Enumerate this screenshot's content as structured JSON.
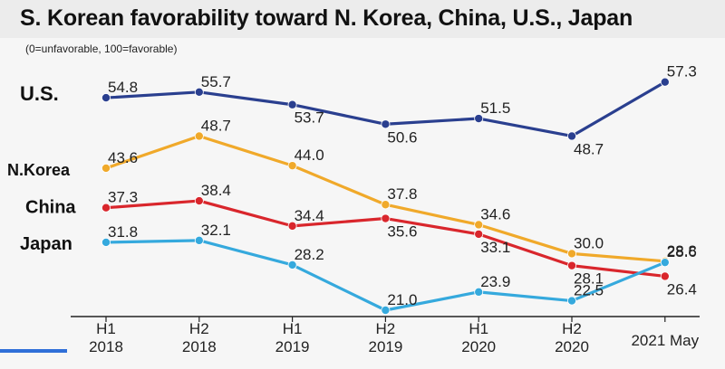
{
  "chart_data": {
    "type": "line",
    "title": "S. Korean favorability toward N. Korea, China, U.S., Japan",
    "subtitle": "(0=unfavorable, 100=favorable)",
    "categories": [
      [
        "H1",
        "2018"
      ],
      [
        "H2",
        "2018"
      ],
      [
        "H1",
        "2019"
      ],
      [
        "H2",
        "2019"
      ],
      [
        "H1",
        "2020"
      ],
      [
        "H2",
        "2020"
      ],
      [
        "2021 May"
      ]
    ],
    "series": [
      {
        "name": "U.S.",
        "color": "#2a3f8f",
        "values": [
          54.8,
          55.7,
          53.7,
          50.6,
          51.5,
          48.7,
          57.3
        ]
      },
      {
        "name": "N.Korea",
        "color": "#f0a92a",
        "values": [
          43.6,
          48.7,
          44.0,
          37.8,
          34.6,
          30.0,
          28.8
        ]
      },
      {
        "name": "China",
        "color": "#d9262c",
        "values": [
          37.3,
          38.4,
          34.4,
          35.6,
          33.1,
          28.1,
          26.4
        ]
      },
      {
        "name": "Japan",
        "color": "#35a9dd",
        "values": [
          31.8,
          32.1,
          28.2,
          21.0,
          23.9,
          22.5,
          28.6
        ]
      }
    ],
    "xlabel": "",
    "ylabel": "",
    "grid": false
  }
}
